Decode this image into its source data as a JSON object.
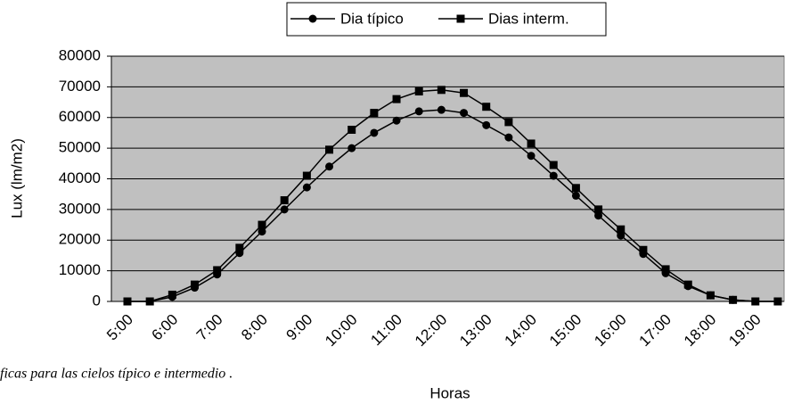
{
  "chart_data": {
    "type": "line",
    "caption": "ficas para las cielos típico e intermedio .",
    "xlabel": "Horas",
    "ylabel": "Lux (lm/m2)",
    "categories": [
      "5:00",
      null,
      "6:00",
      null,
      "7:00",
      null,
      "8:00",
      null,
      "9:00",
      null,
      "10:00",
      null,
      "11:00",
      null,
      "12:00",
      null,
      "13:00",
      null,
      "14:00",
      null,
      "15:00",
      null,
      "16:00",
      null,
      "17:00",
      null,
      "18:00",
      null,
      "19:00",
      null
    ],
    "series": [
      {
        "name": "Dia típico",
        "color": "#000000",
        "marker": "circle",
        "values": [
          0,
          0,
          1500,
          4500,
          8800,
          15800,
          22800,
          30000,
          37200,
          44000,
          50000,
          55000,
          59000,
          62000,
          62500,
          61500,
          57500,
          53500,
          47500,
          41000,
          34500,
          28000,
          21500,
          15500,
          9200,
          5000,
          2000,
          500,
          0,
          0
        ]
      },
      {
        "name": "Dias interm.",
        "color": "#000000",
        "marker": "square",
        "values": [
          0,
          0,
          2200,
          5500,
          10200,
          17500,
          25000,
          33000,
          41000,
          49500,
          56000,
          61500,
          66000,
          68500,
          69000,
          68000,
          63500,
          58500,
          51500,
          44500,
          37000,
          30000,
          23500,
          16800,
          10500,
          5500,
          2000,
          500,
          0,
          0
        ]
      }
    ],
    "ylim": [
      0,
      80000
    ],
    "yticks": [
      0,
      10000,
      20000,
      30000,
      40000,
      50000,
      60000,
      70000,
      80000
    ],
    "grid": true,
    "legend": "top",
    "plot_background": "#c0c0c0"
  }
}
